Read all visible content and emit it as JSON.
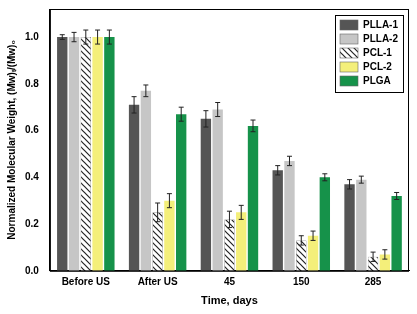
{
  "chart_data": {
    "type": "bar",
    "x_label": "Time, days",
    "y_label": "Normalized Molecular Weight, (Mw)ₜ/(Mw)₀",
    "categories": [
      "Before US",
      "After US",
      "45",
      "150",
      "285"
    ],
    "series": [
      {
        "name": "PLLA-1",
        "color": "#555555",
        "values": [
          1.0,
          0.71,
          0.65,
          0.43,
          0.37
        ],
        "errors": [
          0.01,
          0.035,
          0.035,
          0.02,
          0.02
        ]
      },
      {
        "name": "PLLA-2",
        "color": "#c6c6c6",
        "values": [
          1.0,
          0.77,
          0.69,
          0.47,
          0.39
        ],
        "errors": [
          0.02,
          0.025,
          0.03,
          0.02,
          0.015
        ]
      },
      {
        "name": "PCL-1",
        "color": "#ffffff",
        "values": [
          1.0,
          0.25,
          0.22,
          0.13,
          0.06
        ],
        "errors": [
          0.03,
          0.04,
          0.035,
          0.02,
          0.02
        ]
      },
      {
        "name": "PCL-2",
        "color": "#f4ef7a",
        "values": [
          1.0,
          0.3,
          0.25,
          0.15,
          0.07
        ],
        "errors": [
          0.03,
          0.03,
          0.03,
          0.02,
          0.02
        ]
      },
      {
        "name": "PLGA",
        "color": "#16924a",
        "values": [
          1.0,
          0.67,
          0.62,
          0.4,
          0.32
        ],
        "errors": [
          0.03,
          0.03,
          0.025,
          0.015,
          0.015
        ]
      }
    ],
    "ylim": [
      0,
      1.12
    ],
    "yticks": [
      {
        "value": 0,
        "label": "0.0"
      },
      0.2,
      0.4,
      0.6,
      0.8,
      {
        "value": 1,
        "label": "1.0"
      }
    ],
    "grid": false,
    "legend": "upper right"
  }
}
